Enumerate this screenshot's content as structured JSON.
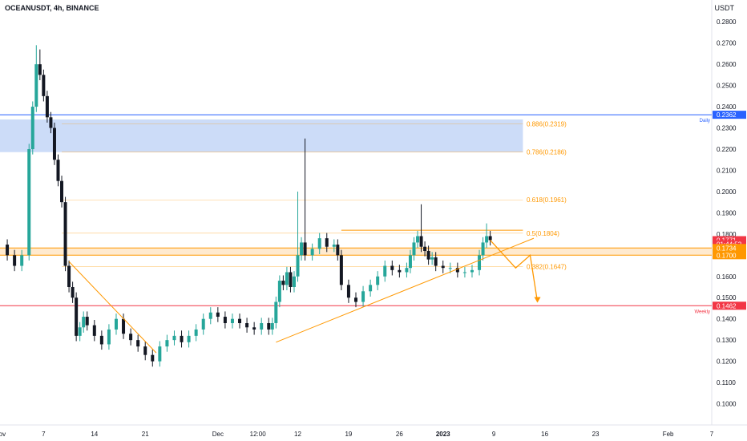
{
  "header": {
    "symbol": "OCEANUSDT, 4h, BINANCE",
    "currency": "USDT"
  },
  "chart_data": {
    "type": "candlestick",
    "y_range": [
      0.09,
      0.285
    ],
    "y_ticks": [
      0.28,
      0.27,
      0.26,
      0.25,
      0.24,
      0.23,
      0.22,
      0.21,
      0.2,
      0.19,
      0.18,
      0.17,
      0.16,
      0.15,
      0.14,
      0.13,
      0.12,
      0.11,
      0.1
    ],
    "x_labels": [
      {
        "label": "Nov",
        "x": 0
      },
      {
        "label": "7",
        "x": 6
      },
      {
        "label": "14",
        "x": 13
      },
      {
        "label": "21",
        "x": 20
      },
      {
        "label": "Dec",
        "x": 30
      },
      {
        "label": "12:00",
        "x": 35.5
      },
      {
        "label": "12",
        "x": 41
      },
      {
        "label": "19",
        "x": 48
      },
      {
        "label": "26",
        "x": 55
      },
      {
        "label": "2023",
        "x": 61
      },
      {
        "label": "9",
        "x": 68
      },
      {
        "label": "16",
        "x": 75
      },
      {
        "label": "23",
        "x": 82
      },
      {
        "label": "Feb",
        "x": 92
      },
      {
        "label": "7",
        "x": 98
      }
    ],
    "closes": [
      {
        "x": 0,
        "y": 0.175
      },
      {
        "x": 1,
        "y": 0.17
      },
      {
        "x": 2,
        "y": 0.165
      },
      {
        "x": 3,
        "y": 0.17
      },
      {
        "x": 4,
        "y": 0.22
      },
      {
        "x": 4.5,
        "y": 0.24
      },
      {
        "x": 5,
        "y": 0.26
      },
      {
        "x": 5.5,
        "y": 0.255
      },
      {
        "x": 6,
        "y": 0.245
      },
      {
        "x": 6.5,
        "y": 0.235
      },
      {
        "x": 7,
        "y": 0.23
      },
      {
        "x": 7.5,
        "y": 0.215
      },
      {
        "x": 8,
        "y": 0.205
      },
      {
        "x": 8.5,
        "y": 0.195
      },
      {
        "x": 9,
        "y": 0.165
      },
      {
        "x": 9.5,
        "y": 0.155
      },
      {
        "x": 10,
        "y": 0.15
      },
      {
        "x": 10.5,
        "y": 0.132
      },
      {
        "x": 11,
        "y": 0.136
      },
      {
        "x": 11.5,
        "y": 0.141
      },
      {
        "x": 12,
        "y": 0.137
      },
      {
        "x": 13,
        "y": 0.132
      },
      {
        "x": 14,
        "y": 0.128
      },
      {
        "x": 15,
        "y": 0.135
      },
      {
        "x": 16,
        "y": 0.14
      },
      {
        "x": 17,
        "y": 0.133
      },
      {
        "x": 18,
        "y": 0.13
      },
      {
        "x": 19,
        "y": 0.127
      },
      {
        "x": 20,
        "y": 0.123
      },
      {
        "x": 21,
        "y": 0.12
      },
      {
        "x": 22,
        "y": 0.127
      },
      {
        "x": 23,
        "y": 0.13
      },
      {
        "x": 24,
        "y": 0.132
      },
      {
        "x": 25,
        "y": 0.129
      },
      {
        "x": 26,
        "y": 0.132
      },
      {
        "x": 27,
        "y": 0.135
      },
      {
        "x": 28,
        "y": 0.14
      },
      {
        "x": 29,
        "y": 0.143
      },
      {
        "x": 30,
        "y": 0.141
      },
      {
        "x": 31,
        "y": 0.138
      },
      {
        "x": 32,
        "y": 0.14
      },
      {
        "x": 33,
        "y": 0.138
      },
      {
        "x": 34,
        "y": 0.136
      },
      {
        "x": 35,
        "y": 0.135
      },
      {
        "x": 36,
        "y": 0.138
      },
      {
        "x": 37,
        "y": 0.135
      },
      {
        "x": 37.5,
        "y": 0.138
      },
      {
        "x": 38,
        "y": 0.148
      },
      {
        "x": 38.5,
        "y": 0.158
      },
      {
        "x": 39,
        "y": 0.156
      },
      {
        "x": 39.5,
        "y": 0.162
      },
      {
        "x": 40,
        "y": 0.155
      },
      {
        "x": 40.5,
        "y": 0.16
      },
      {
        "x": 41,
        "y": 0.17
      },
      {
        "x": 41.5,
        "y": 0.176
      },
      {
        "x": 42,
        "y": 0.17
      },
      {
        "x": 43,
        "y": 0.173
      },
      {
        "x": 44,
        "y": 0.178
      },
      {
        "x": 45,
        "y": 0.174
      },
      {
        "x": 46,
        "y": 0.175
      },
      {
        "x": 46.5,
        "y": 0.17
      },
      {
        "x": 47,
        "y": 0.156
      },
      {
        "x": 48,
        "y": 0.15
      },
      {
        "x": 49,
        "y": 0.148
      },
      {
        "x": 50,
        "y": 0.153
      },
      {
        "x": 51,
        "y": 0.156
      },
      {
        "x": 52,
        "y": 0.16
      },
      {
        "x": 53,
        "y": 0.165
      },
      {
        "x": 54,
        "y": 0.163
      },
      {
        "x": 55,
        "y": 0.162
      },
      {
        "x": 56,
        "y": 0.164
      },
      {
        "x": 56.5,
        "y": 0.17
      },
      {
        "x": 57,
        "y": 0.176
      },
      {
        "x": 57.5,
        "y": 0.179
      },
      {
        "x": 58,
        "y": 0.174
      },
      {
        "x": 58.5,
        "y": 0.172
      },
      {
        "x": 59,
        "y": 0.168
      },
      {
        "x": 59.5,
        "y": 0.169
      },
      {
        "x": 60,
        "y": 0.165
      },
      {
        "x": 61,
        "y": 0.164
      },
      {
        "x": 62,
        "y": 0.164
      },
      {
        "x": 63,
        "y": 0.162
      },
      {
        "x": 64,
        "y": 0.162
      },
      {
        "x": 65,
        "y": 0.163
      },
      {
        "x": 66,
        "y": 0.17
      },
      {
        "x": 66.5,
        "y": 0.176
      },
      {
        "x": 67,
        "y": 0.179
      },
      {
        "x": 67.5,
        "y": 0.1771
      }
    ],
    "spikes": [
      {
        "x": 5,
        "high": 0.269
      },
      {
        "x": 5.5,
        "high": 0.267
      },
      {
        "x": 42,
        "high": 0.225
      },
      {
        "x": 41,
        "high": 0.2
      },
      {
        "x": 58,
        "high": 0.194
      },
      {
        "x": 67,
        "high": 0.185
      }
    ],
    "fib_levels": [
      {
        "label": "0.886(0.2319)",
        "value": 0.2319
      },
      {
        "label": "0.786(0.2186)",
        "value": 0.2186
      },
      {
        "label": "0.618(0.1961)",
        "value": 0.1961
      },
      {
        "label": "0.5(0.1804)",
        "value": 0.1804
      },
      {
        "label": "0.382(0.1647)",
        "value": 0.1647
      }
    ],
    "supply_zone": [
      0.2186,
      0.234
    ],
    "horizontal_lines": [
      {
        "name": "Daily",
        "value": 0.2362,
        "color": "#2962ff"
      },
      {
        "name": "Weekly",
        "value": 0.1462,
        "color": "#f23645"
      }
    ],
    "resistance_box": {
      "from_x": 47,
      "to_x": 100,
      "top": 0.1818,
      "bottom": 0.1818
    },
    "support_band": [
      0.17,
      0.1734
    ],
    "trendlines": [
      {
        "x1": 9.5,
        "y1": 0.167,
        "x2": 21.5,
        "y2": 0.124
      },
      {
        "x1": 38,
        "y1": 0.129,
        "x2": 73.5,
        "y2": 0.178
      }
    ],
    "projection": [
      {
        "x": 67.5,
        "y": 0.1771
      },
      {
        "x": 71,
        "y": 0.164
      },
      {
        "x": 73,
        "y": 0.17
      },
      {
        "x": 74,
        "y": 0.148
      }
    ],
    "price_labels": [
      {
        "text": "0.2362",
        "value": 0.2362,
        "color": "#2962ff"
      },
      {
        "text": "0.1771",
        "value": 0.1771,
        "color": "#f23645"
      },
      {
        "text": "01:44:52",
        "value": 0.1752,
        "color": "#f23645"
      },
      {
        "text": "0.1734",
        "value": 0.1734,
        "color": "#ff9800"
      },
      {
        "text": "0.1700",
        "value": 0.17,
        "color": "#ff9800"
      },
      {
        "text": "0.1462",
        "value": 0.1462,
        "color": "#f23645"
      }
    ],
    "colors": {
      "up": "#26a69a",
      "down": "#131722",
      "fib": "#ff9800",
      "zone": "#bbd0f5",
      "support": "#ffd8a8"
    }
  }
}
